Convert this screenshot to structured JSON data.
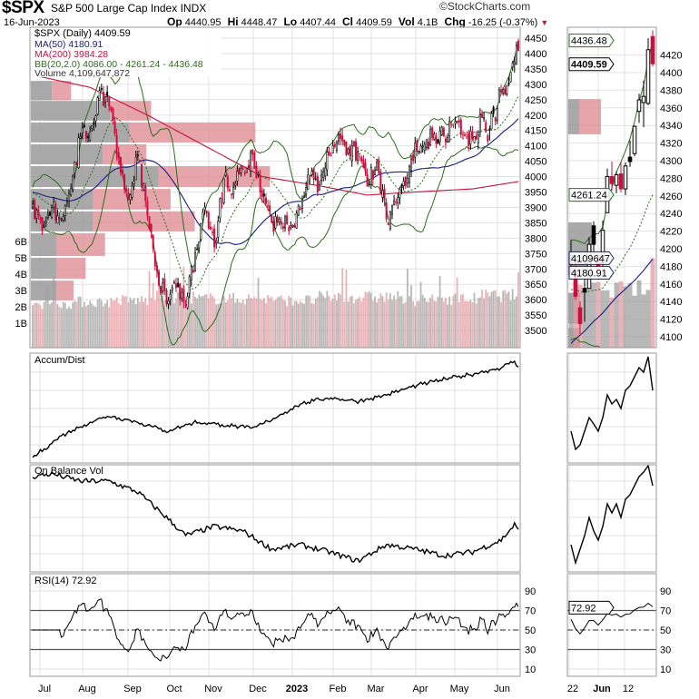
{
  "header": {
    "symbol": "$SPX",
    "name": "S&P 500 Large Cap Index",
    "exchange": "INDX",
    "brand": "©StockCharts.com",
    "date": "16-Jun-2023",
    "open_label": "Op",
    "open": "4440.95",
    "high_label": "Hi",
    "high": "4448.47",
    "low_label": "Lo",
    "low": "4407.44",
    "close_label": "Cl",
    "close": "4409.59",
    "vol_label": "Vol",
    "vol": "4.1B",
    "chg_label": "Chg",
    "chg": "-16.25 (-0.37%)",
    "chg_direction": "down"
  },
  "legend": {
    "price": "$SPX (Daily) 4409.59",
    "ma50": "MA(50) 4180.91",
    "ma200": "MA(200) 3984.28",
    "bb": "BB(20,2.0) 4086.00 - 4261.24 - 4436.48",
    "volume": "Volume 4,109,647,872"
  },
  "panels": {
    "accum": "Accum/Dist",
    "obv": "On Balance Vol",
    "rsi": "RSI(14) 72.92"
  },
  "colors": {
    "up": "#000000",
    "down": "#c8103e",
    "ma50": "#1a1a80",
    "ma200": "#c8103e",
    "bb": "#2e6b1e",
    "vol_up": "#a0a0a0",
    "vol_down": "#e29a9f"
  },
  "chart_data": {
    "type": "candlestick",
    "title": "$SPX S&P 500 Large Cap Index INDX",
    "price_ticks": [
      "3500",
      "3550",
      "3600",
      "3650",
      "3700",
      "3750",
      "3800",
      "3850",
      "3900",
      "3950",
      "4000",
      "4050",
      "4100",
      "4150",
      "4200",
      "4250",
      "4300",
      "4350",
      "4400",
      "4450"
    ],
    "zoom_price_ticks": [
      "4100",
      "4120",
      "4140",
      "4160",
      "4180",
      "4200",
      "4220",
      "4240",
      "4260",
      "4280",
      "4300",
      "4320",
      "4340",
      "4360",
      "4380",
      "4400",
      "4420"
    ],
    "volume_ticks": [
      "1B",
      "2B",
      "3B",
      "4B",
      "5B",
      "6B"
    ],
    "rsi_ticks": [
      "10",
      "30",
      "50",
      "70",
      "90"
    ],
    "month_labels": [
      "Jul",
      "Aug",
      "Sep",
      "Oct",
      "Nov",
      "Dec",
      "2023",
      "Feb",
      "Mar",
      "Apr",
      "May",
      "Jun"
    ],
    "zoom_labels": [
      "22",
      "Jun",
      "12"
    ],
    "weekly_closes": [
      3911,
      3825,
      3899,
      3863,
      3962,
      4130,
      4145,
      4280,
      4228,
      4058,
      3924,
      4067,
      3873,
      3693,
      3586,
      3640,
      3583,
      3752,
      3901,
      3771,
      3993,
      3965,
      4026,
      4072,
      3934,
      3852,
      3845,
      3840,
      3895,
      3999,
      3973,
      4071,
      4136,
      4090,
      4079,
      3970,
      4046,
      3862,
      3917,
      3971,
      4109,
      4105,
      4138,
      4133,
      4169,
      4136,
      4124,
      4192
    ],
    "recent_ohlc": [
      [
        4190,
        4210,
        4178,
        4192
      ],
      [
        4176,
        4186,
        4142,
        4146
      ],
      [
        4133,
        4140,
        4103,
        4115
      ],
      [
        4155,
        4166,
        4117,
        4151
      ],
      [
        4155,
        4213,
        4155,
        4205
      ],
      [
        4226,
        4231,
        4193,
        4205
      ],
      [
        4191,
        4195,
        4166,
        4180
      ],
      [
        4184,
        4232,
        4170,
        4221
      ],
      [
        4241,
        4291,
        4241,
        4282
      ],
      [
        4282,
        4299,
        4266,
        4274
      ],
      [
        4272,
        4288,
        4263,
        4284
      ],
      [
        4285,
        4299,
        4264,
        4268
      ],
      [
        4268,
        4298,
        4261,
        4294
      ],
      [
        4304,
        4323,
        4293,
        4299
      ],
      [
        4308,
        4340,
        4305,
        4339
      ],
      [
        4356,
        4376,
        4343,
        4369
      ],
      [
        4366,
        4391,
        4338,
        4373
      ],
      [
        4365,
        4439,
        4363,
        4426
      ],
      [
        4441,
        4448,
        4407,
        4410
      ]
    ],
    "pad_close": 3950,
    "ma200_points": [
      [
        0,
        4330
      ],
      [
        30,
        4290
      ],
      [
        60,
        4200
      ],
      [
        90,
        4100
      ],
      [
        120,
        4000
      ],
      [
        150,
        3970
      ],
      [
        175,
        3940
      ],
      [
        200,
        3950
      ],
      [
        230,
        3960
      ],
      [
        254,
        3984
      ]
    ],
    "monthly_volume_B": [
      2.2,
      2.3,
      2.4,
      2.6,
      2.5,
      2.5,
      2.4,
      2.6,
      2.6,
      2.4,
      2.5,
      2.7
    ],
    "last_volume_B": 4.11,
    "volume_by_price": [
      {
        "low": 4245,
        "high": 4314,
        "up": 9,
        "down": 8
      },
      {
        "low": 4179,
        "high": 4249,
        "up": 33,
        "down": 17
      },
      {
        "low": 4108,
        "high": 4179,
        "up": 41,
        "down": 52
      },
      {
        "low": 4037,
        "high": 4108,
        "up": 30,
        "down": 18
      },
      {
        "low": 3963,
        "high": 4037,
        "up": 53,
        "down": 46
      },
      {
        "low": 3890,
        "high": 3963,
        "up": 26,
        "down": 32
      },
      {
        "low": 3819,
        "high": 3890,
        "up": 26,
        "down": 42
      },
      {
        "low": 3739,
        "high": 3819,
        "up": 11,
        "down": 20
      },
      {
        "low": 3665,
        "high": 3739,
        "up": 11,
        "down": 12
      },
      {
        "low": 3595,
        "high": 3665,
        "up": 11,
        "down": 7
      }
    ],
    "accum_points": [
      [
        0,
        6
      ],
      [
        15,
        30
      ],
      [
        30,
        45
      ],
      [
        40,
        52
      ],
      [
        55,
        45
      ],
      [
        70,
        35
      ],
      [
        85,
        45
      ],
      [
        100,
        42
      ],
      [
        115,
        38
      ],
      [
        125,
        48
      ],
      [
        140,
        65
      ],
      [
        155,
        72
      ],
      [
        170,
        68
      ],
      [
        185,
        75
      ],
      [
        200,
        85
      ],
      [
        215,
        92
      ],
      [
        230,
        98
      ],
      [
        245,
        105
      ],
      [
        252,
        112
      ],
      [
        254,
        104
      ]
    ],
    "obv_points": [
      [
        0,
        105
      ],
      [
        10,
        108
      ],
      [
        25,
        100
      ],
      [
        40,
        100
      ],
      [
        55,
        88
      ],
      [
        70,
        60
      ],
      [
        80,
        40
      ],
      [
        95,
        50
      ],
      [
        110,
        45
      ],
      [
        125,
        25
      ],
      [
        140,
        30
      ],
      [
        155,
        22
      ],
      [
        170,
        12
      ],
      [
        185,
        30
      ],
      [
        200,
        25
      ],
      [
        215,
        18
      ],
      [
        230,
        22
      ],
      [
        245,
        35
      ],
      [
        252,
        52
      ],
      [
        254,
        45
      ]
    ],
    "zoom_accum": [
      30,
      10,
      15,
      30,
      45,
      38,
      30,
      45,
      70,
      60,
      65,
      55,
      75,
      80,
      90,
      100,
      95,
      112,
      75
    ],
    "zoom_obv": [
      25,
      5,
      20,
      35,
      55,
      40,
      30,
      45,
      70,
      60,
      70,
      55,
      75,
      80,
      90,
      100,
      105,
      112,
      90
    ],
    "tags": [
      {
        "label": "4436.48",
        "kind": "price",
        "value": 4436.48,
        "color": "#2e6b1e"
      },
      {
        "label": "4409.59",
        "kind": "price",
        "value": 4409.59,
        "color": "#000000",
        "bold": true
      },
      {
        "label": "4261.24",
        "kind": "price",
        "value": 4261.24,
        "color": "#2e6b1e"
      },
      {
        "label": "4109647",
        "kind": "volume",
        "value": 4.11,
        "color": "#1a1a80"
      },
      {
        "label": "4180.91",
        "kind": "price",
        "value": 4180.91,
        "color": "#1a1a80"
      },
      {
        "label": "72.92",
        "kind": "rsi",
        "value": 72.92,
        "color": "#000000"
      }
    ],
    "rsi_levels": [
      30,
      50,
      70
    ]
  }
}
